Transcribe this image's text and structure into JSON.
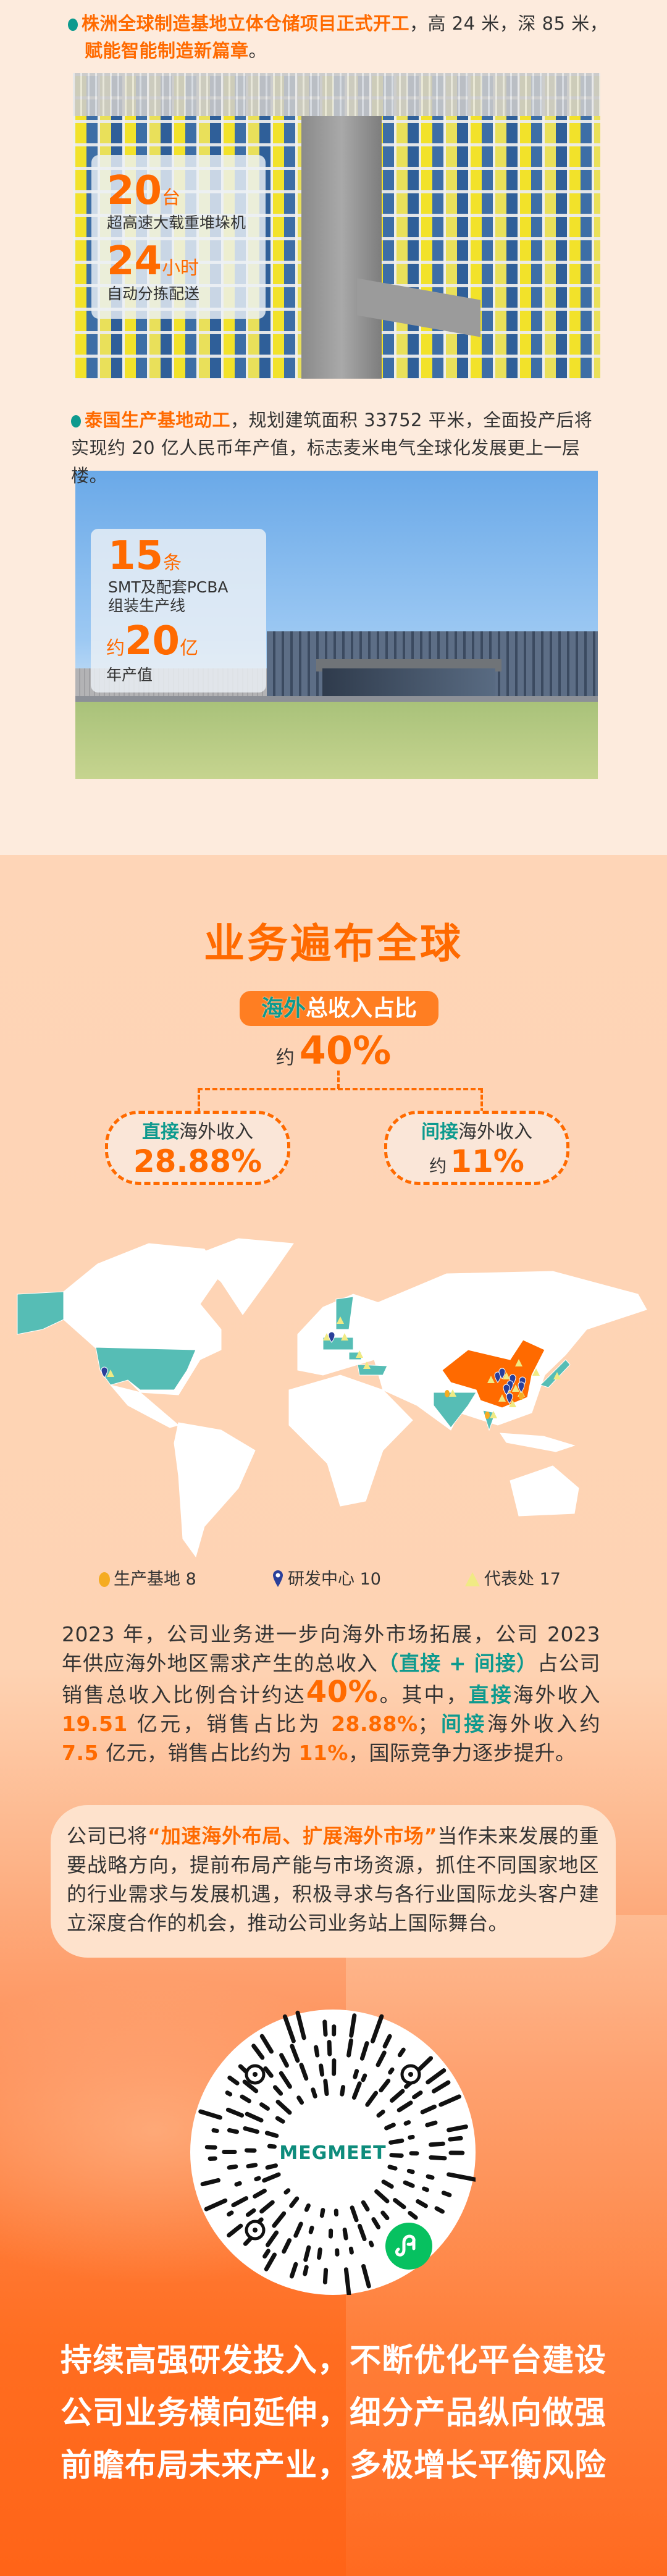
{
  "milestones": [
    {
      "highlight": "株洲全球制造基地立体仓储项目正式开工",
      "text": "，高 24 米，深 85 米，",
      "highlight2": "赋能智能制造新篇章",
      "end": "。",
      "stats": [
        {
          "value": "20",
          "unit": "台",
          "label": "超高速大载重堆垛机"
        },
        {
          "value": "24",
          "unit": "小时",
          "label": "自动分拣配送"
        }
      ]
    },
    {
      "highlight": "泰国生产基地动工",
      "text": "，规划建筑面积 33752 平米，全面投产后将实现约 20 亿人民币年产值，标志麦米电气全球化发展更上一层楼。",
      "stats": [
        {
          "value": "15",
          "unit": "条",
          "label": "SMT及配套PCBA",
          "label2": "组装生产线"
        },
        {
          "prefix": "约",
          "value": "20",
          "unit": "亿",
          "label": "年产值"
        }
      ]
    }
  ],
  "overseas": {
    "title": "业务遍布全球",
    "badge_teal": "海外",
    "badge_rest": "总收入占比",
    "total_prefix": "约",
    "total_value": "40%",
    "direct": {
      "teal": "直接",
      "label": "海外收入",
      "value": "28.88%"
    },
    "indirect": {
      "teal": "间接",
      "label": "海外收入",
      "prefix": "约",
      "value": "11%"
    }
  },
  "map": {
    "colors": {
      "china": "#ff6a00",
      "presence": "#56bdb5",
      "land": "#ffffff",
      "production": "#f5ac22",
      "rnd": "#2a3f9a",
      "office": "#f0ea84"
    },
    "legend": [
      {
        "icon": "dot-icon",
        "label": "生产基地 8"
      },
      {
        "icon": "pin-icon",
        "label": "研发中心 10"
      },
      {
        "icon": "triangle-icon",
        "label": "代表处 17"
      }
    ]
  },
  "paragraph": [
    "2023 年，公司业务进一步向海外市场拓展，公司 2023 年供应海外地区需求产生的总收入",
    "（直接 + 间接）",
    "占公司销售总收入比例合计约达",
    "40%",
    "。其中，",
    "直接",
    "海外收入 ",
    "19.51",
    " 亿元，销售占比为 ",
    "28.88%",
    "；",
    "间接",
    "海外收入约 ",
    "7.5",
    " 亿元，销售占比约为 ",
    "11%",
    "，国际竞争力逐步提升。"
  ],
  "strategy": [
    "公司已将",
    "“加速海外布局、扩展海外市场”",
    "当作未来发展的重要战略方向，提前布局产能与市场资源，抓住不同国家地区的行业需求与发展机遇，积极寻求与各行业国际龙头客户建立深度合作的机会，推动公司业务站上国际舞台。"
  ],
  "qr": {
    "logo_text": "MEGMEET"
  },
  "slogan": [
    "持续高强研发投入，不断优化平台建设",
    "公司业务横向延伸，细分产品纵向做强",
    "前瞻布局未来产业，多极增长平衡风险"
  ]
}
